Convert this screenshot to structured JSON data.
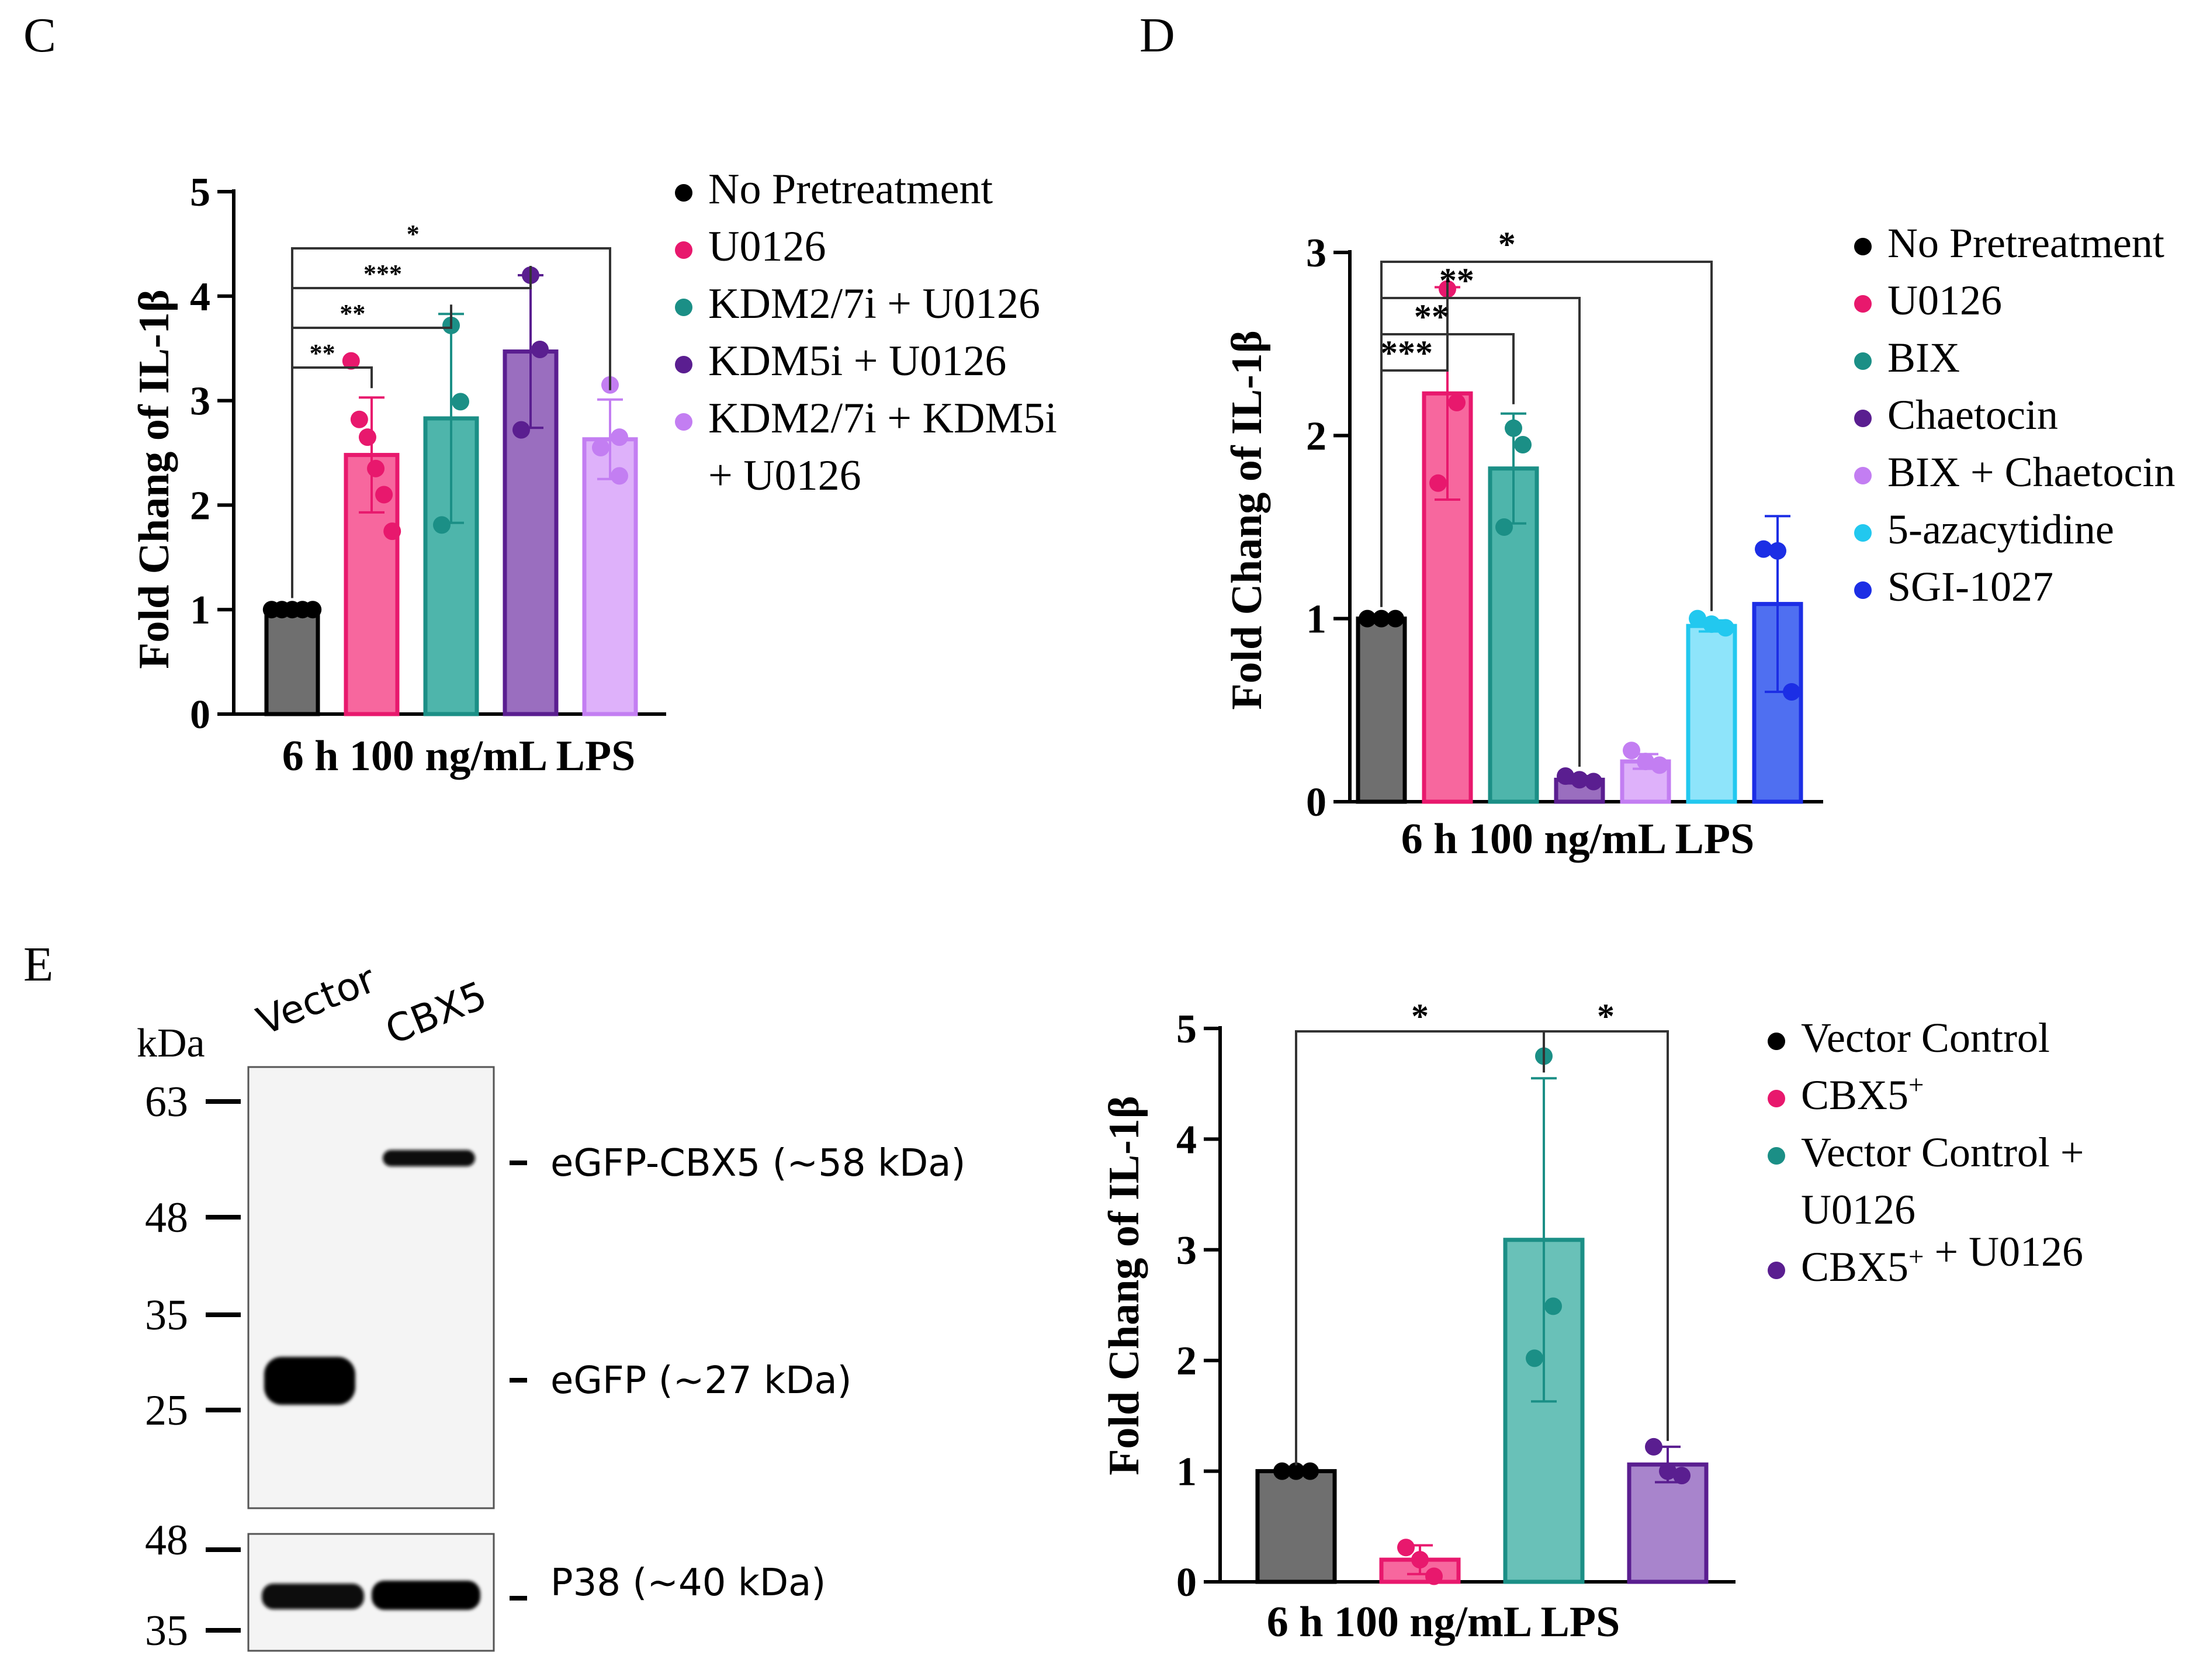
{
  "colors": {
    "no_pretreatment": "#6f6f6f",
    "u0126": "#f7679e",
    "teal": "#3aa99e",
    "purple": "#9160b8",
    "lilac": "#d8a8f5",
    "cyan": "#66d6f5",
    "blue": "#3050ee"
  },
  "chart_data": [
    {
      "id": "C",
      "panel_label": "C",
      "type": "bar",
      "xlabel": "6 h 100 ng/mL LPS",
      "ylabel": "Fold Chang of IL-1β",
      "ylim": [
        0,
        5
      ],
      "yticks": [
        "0",
        "1",
        "2",
        "3",
        "4",
        "5"
      ],
      "series": [
        {
          "name": "No Pretreatment",
          "legend": [
            "No Pretreatment"
          ],
          "value": 1.0,
          "error": 0,
          "points": [
            1,
            1,
            1,
            1,
            1
          ],
          "fill": "#6f6f6f",
          "edge": "#000000",
          "dot": "#000000"
        },
        {
          "name": "U0126",
          "legend": [
            "U0126"
          ],
          "value": 2.48,
          "error": 0.55,
          "points": [
            3.38,
            2.82,
            2.65,
            2.35,
            2.1,
            1.75
          ],
          "fill": "#f7679e",
          "edge": "#e8186d",
          "dot": "#e8186d"
        },
        {
          "name": "KDM2/7i + U0126",
          "legend": [
            "KDM2/7i + U0126"
          ],
          "value": 2.83,
          "error": 1.0,
          "points": [
            3.72,
            2.99,
            1.81
          ],
          "fill": "#4eb5ab",
          "edge": "#1b8f86",
          "dot": "#1b8f86"
        },
        {
          "name": "KDM5i + U0126",
          "legend": [
            "KDM5i + U0126"
          ],
          "value": 3.47,
          "error": 0.73,
          "points": [
            4.2,
            3.49,
            2.72
          ],
          "fill": "#9a6ebf",
          "edge": "#5a1e90",
          "dot": "#5a1e90"
        },
        {
          "name": "KDM2/7i + KDM5i + U0126",
          "legend": [
            "KDM2/7i + KDM5i",
            "+ U0126"
          ],
          "value": 2.63,
          "error": 0.38,
          "points": [
            3.15,
            2.65,
            2.55,
            2.28
          ],
          "fill": "#deb1fa",
          "edge": "#c37ef2",
          "dot": "#c37ef2"
        }
      ],
      "significance": [
        {
          "from": 0,
          "to": 1,
          "label": "**"
        },
        {
          "from": 0,
          "to": 2,
          "label": "**"
        },
        {
          "from": 0,
          "to": 3,
          "label": "***"
        },
        {
          "from": 0,
          "to": 4,
          "label": "*"
        }
      ]
    },
    {
      "id": "D",
      "panel_label": "D",
      "type": "bar",
      "xlabel": "6 h 100 ng/mL LPS",
      "ylabel": "Fold Chang of IL-1β",
      "ylim": [
        0,
        3
      ],
      "yticks": [
        "0",
        "1",
        "2",
        "3"
      ],
      "series": [
        {
          "name": "No Pretreatment",
          "legend": [
            "No Pretreatment"
          ],
          "value": 1.0,
          "error": 0,
          "points": [
            1,
            1,
            1
          ],
          "fill": "#6f6f6f",
          "edge": "#000000",
          "dot": "#000000"
        },
        {
          "name": "U0126",
          "legend": [
            "U0126"
          ],
          "value": 2.23,
          "error": 0.58,
          "points": [
            2.8,
            2.18,
            1.74
          ],
          "fill": "#f7679e",
          "edge": "#e8186d",
          "dot": "#e8186d"
        },
        {
          "name": "BIX",
          "legend": [
            "BIX"
          ],
          "value": 1.82,
          "error": 0.3,
          "points": [
            2.04,
            1.95,
            1.5
          ],
          "fill": "#4eb5ab",
          "edge": "#1b8f86",
          "dot": "#1b8f86"
        },
        {
          "name": "Chaetocin",
          "legend": [
            "Chaetocin"
          ],
          "value": 0.12,
          "error": 0.02,
          "points": [
            0.14,
            0.12,
            0.11
          ],
          "fill": "#9a6ebf",
          "edge": "#5a1e90",
          "dot": "#5a1e90"
        },
        {
          "name": "BIX + Chaetocin",
          "legend": [
            "BIX + Chaetocin"
          ],
          "value": 0.22,
          "error": 0.04,
          "points": [
            0.28,
            0.22,
            0.2
          ],
          "fill": "#deb1fa",
          "edge": "#c37ef2",
          "dot": "#c37ef2"
        },
        {
          "name": "5-azacytidine",
          "legend": [
            "5-azacytidine"
          ],
          "value": 0.96,
          "error": 0.03,
          "points": [
            1.0,
            0.97,
            0.95
          ],
          "fill": "#8ee4fa",
          "edge": "#22c8ef",
          "dot": "#22c8ef"
        },
        {
          "name": "SGI-1027",
          "legend": [
            "SGI-1027"
          ],
          "value": 1.08,
          "error": 0.48,
          "points": [
            1.38,
            1.37,
            0.6
          ],
          "fill": "#4f6ff1",
          "edge": "#1c2ee5",
          "dot": "#1c2ee5"
        }
      ],
      "significance": [
        {
          "from": 0,
          "to": 1,
          "label": "***"
        },
        {
          "from": 0,
          "to": 2,
          "label": "**"
        },
        {
          "from": 0,
          "to": 3,
          "label": "**"
        },
        {
          "from": 0,
          "to": 5,
          "label": "*"
        }
      ]
    },
    {
      "id": "E",
      "panel_label": "",
      "type": "bar",
      "xlabel": "6 h 100 ng/mL LPS",
      "ylabel": "Fold Chang of IL-1β",
      "ylim": [
        0,
        5
      ],
      "yticks": [
        "0",
        "1",
        "2",
        "3",
        "4",
        "5"
      ],
      "series": [
        {
          "name": "Vector Control",
          "legend": [
            "Vector Control"
          ],
          "value": 1.0,
          "error": 0,
          "points": [
            1,
            1,
            1
          ],
          "fill": "#6f6f6f",
          "edge": "#000000",
          "dot": "#000000"
        },
        {
          "name": "CBX5+",
          "legend": [
            "CBX5+"
          ],
          "value": 0.2,
          "error": 0.13,
          "points": [
            0.31,
            0.2,
            0.05
          ],
          "fill": "#f7679e",
          "edge": "#e8186d",
          "dot": "#e8186d"
        },
        {
          "name": "Vector Control + U0126",
          "legend": [
            "Vector Control +",
            "U0126"
          ],
          "value": 3.09,
          "error": 1.46,
          "points": [
            4.75,
            2.49,
            2.02
          ],
          "fill": "#69c1b8",
          "edge": "#1b8f86",
          "dot": "#1b8f86"
        },
        {
          "name": "CBX5+ + U0126",
          "legend": [
            "CBX5+ + U0126"
          ],
          "value": 1.06,
          "error": 0.16,
          "points": [
            1.22,
            1.0,
            0.96
          ],
          "fill": "#a884cc",
          "edge": "#5a1e90",
          "dot": "#5a1e90"
        }
      ],
      "significance": [
        {
          "from": 0,
          "to": 2,
          "label": "*"
        },
        {
          "from": 2,
          "to": 3,
          "label": "*"
        }
      ]
    }
  ],
  "blot": {
    "panel_label": "E",
    "unit_label": "kDa",
    "lanes": [
      "Vector",
      "CBX5"
    ],
    "upper_markers": [
      "63",
      "48",
      "35",
      "25"
    ],
    "lower_markers": [
      "48",
      "35"
    ],
    "bands": [
      "eGFP-CBX5 (~58 kDa)",
      "eGFP (~27 kDa)",
      "P38 (~40 kDa)"
    ]
  }
}
